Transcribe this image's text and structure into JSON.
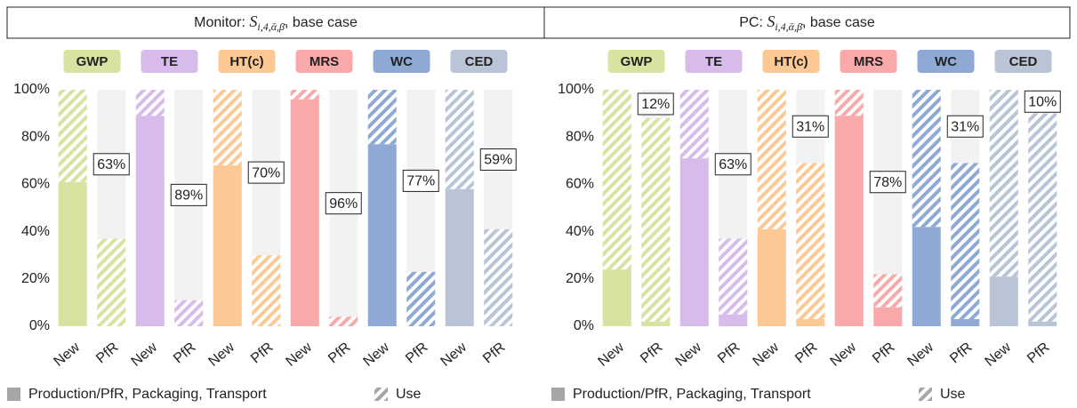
{
  "chart_data": [
    {
      "type": "bar",
      "stacked": true,
      "title": {
        "prefix": "Monitor: ",
        "symbol": "S",
        "subscript": "i,4,ᾱ,β̄",
        "suffix": ", base case"
      },
      "groups": [
        {
          "name": "GWP",
          "color": "#d6e3a1"
        },
        {
          "name": "TE",
          "color": "#d7bbea"
        },
        {
          "name": "HT(c)",
          "color": "#fcc994"
        },
        {
          "name": "MRS",
          "color": "#f9a9aa"
        },
        {
          "name": "WC",
          "color": "#8eaad4"
        },
        {
          "name": "CED",
          "color": "#b9c5d6"
        }
      ],
      "categories": [
        "New",
        "PfR",
        "New",
        "PfR",
        "New",
        "PfR",
        "New",
        "PfR",
        "New",
        "PfR",
        "New",
        "PfR"
      ],
      "series": [
        {
          "name": "Production/PfR, Packaging, Transport",
          "color": "#a6a6a6",
          "pattern": "solid",
          "values": [
            61,
            0,
            89,
            0,
            68,
            0,
            96,
            0,
            77,
            0,
            58,
            0
          ]
        },
        {
          "name": "Use",
          "color": "#a6a6a6",
          "pattern": "hatch",
          "values": [
            39,
            37,
            11,
            11,
            32,
            30,
            4,
            4,
            23,
            23,
            42,
            41
          ]
        }
      ],
      "savings": {
        "values": [
          63,
          89,
          70,
          96,
          77,
          59
        ],
        "value_labels": [
          "63%",
          "89%",
          "70%",
          "96%",
          "77%",
          "59%"
        ]
      },
      "background": "#f2f2f2",
      "ylim": [
        0,
        100
      ],
      "yticks": [
        {
          "value": 0,
          "label": "0%"
        },
        {
          "value": 20,
          "label": "20%"
        },
        {
          "value": 40,
          "label": "40%"
        },
        {
          "value": 60,
          "label": "60%"
        },
        {
          "value": 80,
          "label": "80%"
        },
        {
          "value": 100,
          "label": "100%"
        }
      ]
    },
    {
      "type": "bar",
      "stacked": true,
      "title": {
        "prefix": "PC: ",
        "symbol": "S",
        "subscript": "i,4,ᾱ,β̄",
        "suffix": ", base case"
      },
      "groups": [
        {
          "name": "GWP",
          "color": "#d6e3a1"
        },
        {
          "name": "TE",
          "color": "#d7bbea"
        },
        {
          "name": "HT(c)",
          "color": "#fcc994"
        },
        {
          "name": "MRS",
          "color": "#f9a9aa"
        },
        {
          "name": "WC",
          "color": "#8eaad4"
        },
        {
          "name": "CED",
          "color": "#b9c5d6"
        }
      ],
      "categories": [
        "New",
        "PfR",
        "New",
        "PfR",
        "New",
        "PfR",
        "New",
        "PfR",
        "New",
        "PfR",
        "New",
        "PfR"
      ],
      "series": [
        {
          "name": "Production/PfR, Packaging, Transport",
          "color": "#a6a6a6",
          "pattern": "solid",
          "values": [
            24,
            2,
            71,
            5,
            41,
            3,
            89,
            8,
            42,
            3,
            21,
            2
          ]
        },
        {
          "name": "Use",
          "color": "#a6a6a6",
          "pattern": "hatch",
          "values": [
            76,
            86,
            29,
            32,
            59,
            66,
            11,
            14,
            58,
            66,
            79,
            88
          ]
        }
      ],
      "savings": {
        "values": [
          12,
          63,
          31,
          78,
          31,
          10
        ],
        "value_labels": [
          "12%",
          "63%",
          "31%",
          "78%",
          "31%",
          "10%"
        ]
      },
      "background": "#f2f2f2",
      "ylim": [
        0,
        100
      ],
      "yticks": [
        {
          "value": 0,
          "label": "0%"
        },
        {
          "value": 20,
          "label": "20%"
        },
        {
          "value": 40,
          "label": "40%"
        },
        {
          "value": 60,
          "label": "60%"
        },
        {
          "value": 80,
          "label": "80%"
        },
        {
          "value": 100,
          "label": "100%"
        }
      ]
    }
  ]
}
